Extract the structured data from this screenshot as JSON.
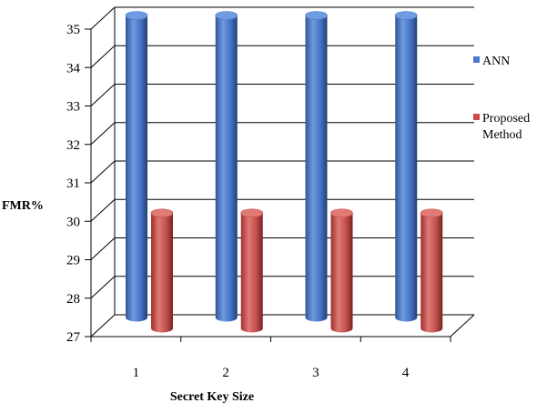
{
  "chart_data": {
    "type": "bar",
    "style": "3d-cylinder",
    "categories": [
      "1",
      "2",
      "3",
      "4"
    ],
    "series": [
      {
        "name": "ANN",
        "values": [
          35,
          35,
          35,
          35
        ],
        "color": "#4a7bd0"
      },
      {
        "name": "Proposed Method",
        "values": [
          30,
          30,
          30,
          30
        ],
        "color": "#c94a46"
      }
    ],
    "xlabel": "Secret Key Size",
    "ylabel": "FMR%",
    "ylim": [
      27,
      35
    ],
    "yticks": [
      "27",
      "28",
      "29",
      "30",
      "31",
      "32",
      "33",
      "34",
      "35"
    ],
    "grid": true,
    "legend_position": "right",
    "legend_entries": [
      {
        "series": 0,
        "lines": [
          "ANN"
        ]
      },
      {
        "series": 1,
        "lines": [
          "Proposed",
          "Method"
        ]
      }
    ]
  }
}
